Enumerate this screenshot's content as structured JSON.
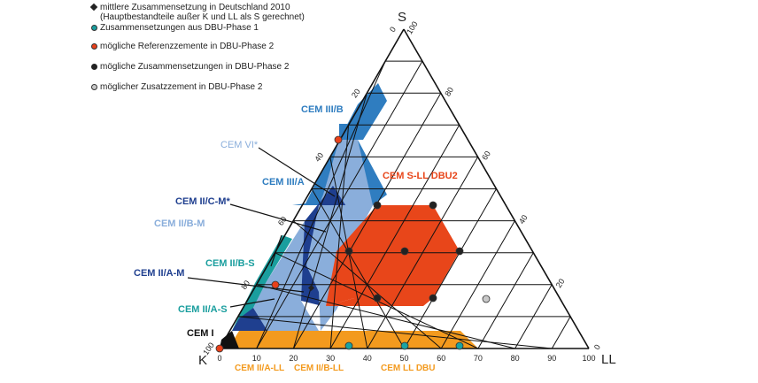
{
  "legend": [
    {
      "symbol": "diamond",
      "color": "#222222",
      "lines": [
        "mittlere Zusammensetzung in Deutschland 2010",
        "(Hauptbestandteile außer K und LL als S gerechnet)"
      ]
    },
    {
      "symbol": "circle",
      "color": "#1aa3a3",
      "lines": [
        "Zusammensetzungen aus DBU-Phase 1"
      ]
    },
    {
      "symbol": "circle",
      "color": "#e8401a",
      "lines": [
        "mögliche Referenzzemente in DBU-Phase 2"
      ]
    },
    {
      "symbol": "circle",
      "color": "#222222",
      "lines": [
        "mögliche Zusammensetzungen in DBU-Phase 2"
      ]
    },
    {
      "symbol": "circle",
      "color": "#c8c8c8",
      "lines": [
        "möglicher Zusatzzement in DBU-Phase 2"
      ]
    }
  ],
  "axes": {
    "s_label": "S",
    "k_label": "K",
    "ll_label": "LL",
    "bottom_ticks": [
      "0",
      "10",
      "20",
      "30",
      "40",
      "50",
      "60",
      "70",
      "80",
      "90",
      "100"
    ],
    "left_ticks": [
      "0",
      "20",
      "40",
      "60",
      "80",
      "100"
    ],
    "right_ticks": [
      "100",
      "80",
      "60",
      "40",
      "20",
      "0"
    ]
  },
  "labels": {
    "cem_iii_b": "CEM III/B",
    "cem_vi": "CEM VI*",
    "cem_iii_a": "CEM III/A",
    "cem_ii_c_m": "CEM II/C-M*",
    "cem_ii_b_m": "CEM II/B-M",
    "cem_ii_b_s": "CEM II/B-S",
    "cem_ii_a_m": "CEM II/A-M",
    "cem_ii_a_s": "CEM II/A-S",
    "cem_i": "CEM I",
    "cem_s_ll_dbu2": "CEM S-LL DBU2",
    "cem_ii_a_ll": "CEM II/A-LL",
    "cem_ii_b_ll": "CEM II/B-LL",
    "cem_ll_dbu": "CEM LL DBU"
  },
  "colors": {
    "dark_blue": "#1f3f8f",
    "mid_blue": "#2f7dc0",
    "light_blue": "#8aaedb",
    "teal": "#1a9e9e",
    "orange": "#f39a1e",
    "red_orange": "#e8461a",
    "grid": "#111111"
  }
}
